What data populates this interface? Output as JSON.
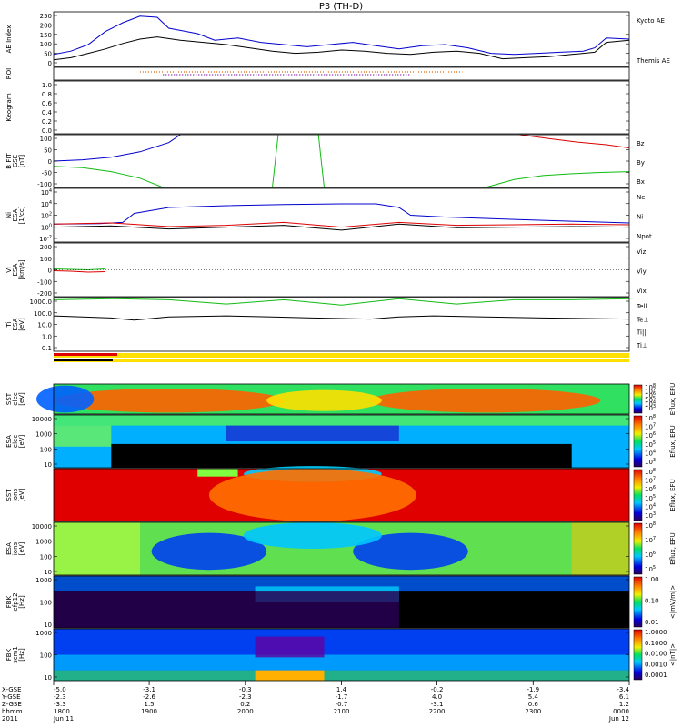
{
  "title": "P3 (TH-D)",
  "colors": {
    "blue": "#0000cc",
    "red": "#dd0000",
    "green": "#11bb11",
    "black": "#000000",
    "orange": "#e06000",
    "purple": "#6a00a0"
  },
  "chart_data": [
    {
      "type": "line",
      "panel": "ae",
      "ylabel": "AE Index",
      "ylim": [
        0,
        250
      ],
      "yticks": [
        "250",
        "200",
        "150",
        "100",
        "50",
        "0"
      ],
      "legend": [
        "Kyoto AE",
        "Themis AE"
      ],
      "series": [
        {
          "name": "Kyoto AE",
          "t": [
            0,
            0.03,
            0.06,
            0.09,
            0.12,
            0.15,
            0.18,
            0.2,
            0.22,
            0.25,
            0.28,
            0.32,
            0.36,
            0.4,
            0.44,
            0.48,
            0.52,
            0.56,
            0.6,
            0.64,
            0.68,
            0.72,
            0.76,
            0.8,
            0.84,
            0.88,
            0.92,
            0.94,
            0.96,
            1.0
          ],
          "values": [
            55,
            70,
            100,
            160,
            200,
            230,
            225,
            175,
            165,
            150,
            120,
            130,
            110,
            100,
            90,
            100,
            110,
            95,
            80,
            95,
            100,
            85,
            60,
            55,
            60,
            65,
            70,
            85,
            130,
            125
          ]
        },
        {
          "name": "Themis AE",
          "t": [
            0,
            0.03,
            0.06,
            0.09,
            0.12,
            0.15,
            0.18,
            0.22,
            0.26,
            0.3,
            0.34,
            0.38,
            0.42,
            0.46,
            0.5,
            0.54,
            0.58,
            0.62,
            0.66,
            0.7,
            0.74,
            0.78,
            0.82,
            0.86,
            0.9,
            0.94,
            0.96,
            1.0
          ],
          "values": [
            30,
            40,
            60,
            80,
            105,
            125,
            135,
            120,
            110,
            100,
            85,
            70,
            60,
            65,
            75,
            70,
            60,
            55,
            65,
            70,
            60,
            35,
            40,
            45,
            55,
            65,
            110,
            120
          ]
        }
      ]
    },
    {
      "type": "line",
      "panel": "roi",
      "ylabel": "ROI",
      "note": "dotted occupancy flags",
      "series": [
        {
          "name": "",
          "t": [
            0.15,
            0.71
          ],
          "values": [
            1,
            1
          ]
        },
        {
          "name": "",
          "t": [
            0.19,
            0.62
          ],
          "values": [
            2,
            2
          ]
        }
      ]
    },
    {
      "type": "line",
      "panel": "keogram",
      "ylabel": "Keogram",
      "ylim": [
        0,
        1
      ],
      "yticks": [
        "1.0",
        "0.8",
        "0.6",
        "0.4",
        "0.2",
        "0.0"
      ]
    },
    {
      "type": "line",
      "panel": "bfit",
      "ylabel": "B FIT\nGSE\n[nT]",
      "ylim": [
        -100,
        100
      ],
      "yticks": [
        "100",
        "50",
        "0",
        "-50",
        "-100"
      ],
      "legend": [
        "Bz",
        "By",
        "Bx"
      ],
      "series": [
        {
          "name": "Bx",
          "t": [
            0,
            0.05,
            0.1,
            0.15,
            0.2,
            0.22
          ],
          "values": [
            0,
            5,
            15,
            35,
            70,
            100
          ]
        },
        {
          "name": "By",
          "t": [
            0,
            0.05,
            0.1,
            0.15,
            0.19
          ],
          "values": [
            -20,
            -25,
            -40,
            -65,
            -100
          ]
        },
        {
          "name": "Bz",
          "t": [
            0.81,
            0.86,
            0.91,
            0.96,
            1.0
          ],
          "values": [
            100,
            85,
            72,
            62,
            50
          ]
        },
        {
          "name": "By",
          "t": [
            0.38,
            0.385,
            0.39
          ],
          "values": [
            -100,
            0,
            100
          ]
        },
        {
          "name": "By",
          "t": [
            0.46,
            0.465,
            0.47
          ],
          "values": [
            100,
            0,
            -100
          ]
        },
        {
          "name": "By",
          "t": [
            0.75,
            0.8,
            0.85,
            0.9,
            0.95,
            1.0
          ],
          "values": [
            -100,
            -70,
            -55,
            -48,
            -43,
            -40
          ]
        }
      ]
    },
    {
      "type": "line",
      "panel": "ni",
      "ylabel": "Ni\nESA\n[1/cc]",
      "scale": "log",
      "ylim_exp": [
        -3,
        6
      ],
      "yticks": [
        "10^4",
        "10^4",
        "10^2",
        "10^0",
        "10^-2"
      ],
      "legend": [
        "Ne",
        "Ni",
        "Npot"
      ],
      "series": [
        {
          "name": "Npot",
          "t": [
            0,
            0.08,
            0.12,
            0.14,
            0.2,
            0.3,
            0.4,
            0.5,
            0.56,
            0.6,
            0.62,
            0.68,
            0.8,
            0.9,
            1.0
          ],
          "values_log": [
            0,
            0.1,
            0.3,
            1.8,
            2.8,
            3.1,
            3.3,
            3.4,
            3.4,
            2.8,
            1.5,
            1.2,
            0.8,
            0.5,
            0.2
          ]
        },
        {
          "name": "Ne",
          "t": [
            0,
            0.1,
            0.2,
            0.3,
            0.4,
            0.5,
            0.6,
            0.7,
            0.8,
            0.9,
            1.0
          ],
          "values_log": [
            0,
            0.2,
            -0.4,
            -0.2,
            0.3,
            -0.5,
            0.3,
            -0.2,
            -0.1,
            0,
            -0.1
          ]
        },
        {
          "name": "Ni",
          "t": [
            0,
            0.1,
            0.2,
            0.3,
            0.4,
            0.5,
            0.6,
            0.7,
            0.8,
            0.9,
            1.0
          ],
          "values_log": [
            -0.5,
            -0.3,
            -0.8,
            -0.5,
            -0.2,
            -1.0,
            0,
            -0.6,
            -0.5,
            -0.4,
            -0.5
          ]
        }
      ]
    },
    {
      "type": "line",
      "panel": "vi",
      "ylabel": "Vi\nESA\n[km/s]",
      "ylim": [
        -300,
        300
      ],
      "yticks": [
        "200",
        "100",
        "0",
        "-100",
        "-200"
      ],
      "legend": [
        "Viz",
        "Viy",
        "Vix"
      ],
      "series": [
        {
          "name": "Viy",
          "t": [
            0,
            0.03,
            0.06,
            0.09
          ],
          "values": [
            10,
            5,
            0,
            10
          ]
        },
        {
          "name": "Viz",
          "t": [
            0,
            0.03,
            0.06,
            0.09
          ],
          "values": [
            -10,
            -15,
            -25,
            -20
          ]
        }
      ]
    },
    {
      "type": "line",
      "panel": "ti",
      "ylabel": "Ti\nESA\n[eV]",
      "scale": "log",
      "ylim_exp": [
        -1,
        4
      ],
      "yticks": [
        "1000.0",
        "100.0",
        "10.0",
        "1.0",
        "0.1"
      ],
      "legend": [
        "Tell",
        "Te⊥",
        "Ti||",
        "Ti⊥"
      ],
      "series": [
        {
          "name": "Tell",
          "t": [
            0,
            0.1,
            0.2,
            0.3,
            0.4,
            0.5,
            0.6,
            0.7,
            0.8,
            0.9,
            1.0
          ],
          "values_log": [
            3.8,
            3.9,
            3.8,
            3.4,
            3.8,
            3.3,
            3.9,
            3.4,
            3.8,
            3.8,
            3.9
          ]
        },
        {
          "name": "Ti||",
          "t": [
            0,
            0.1,
            0.14,
            0.2,
            0.3,
            0.38,
            0.45,
            0.55,
            0.6,
            0.66,
            0.75,
            0.85,
            1.0
          ],
          "values_log": [
            2.3,
            2.1,
            1.9,
            2.2,
            2.3,
            2.2,
            2.1,
            2.0,
            2.2,
            2.3,
            2.2,
            2.1,
            2.0
          ]
        }
      ]
    },
    {
      "type": "heatmap",
      "panel": "sst_e",
      "ylabel": "SST\nelec\n[eV]",
      "cbar_label": "Eflux, EFU",
      "cbar_ticks": [
        "10^8",
        "10^7",
        "10^6",
        "10^5",
        "10^4",
        "10^3"
      ]
    },
    {
      "type": "heatmap",
      "panel": "esa_e",
      "ylabel": "ESA\nelec\n[eV]",
      "yticks": [
        "10000",
        "1000",
        "100",
        "10"
      ],
      "cbar_label": "Eflux, EFU",
      "cbar_ticks": [
        "10^8",
        "10^7",
        "10^6",
        "10^5",
        "10^4",
        "10^3"
      ]
    },
    {
      "type": "heatmap",
      "panel": "sst_i",
      "ylabel": "SST\nions\n[eV]",
      "cbar_label": "Eflux, EFU",
      "cbar_ticks": [
        "10^8",
        "10^7",
        "10^6",
        "10^5",
        "10^4",
        "10^3"
      ]
    },
    {
      "type": "heatmap",
      "panel": "esa_i",
      "ylabel": "ESA\nions\n[eV]",
      "yticks": [
        "10000",
        "1000",
        "100",
        "10"
      ],
      "cbar_label": "Eflux, EFU",
      "cbar_ticks": [
        "10^8",
        "10^7",
        "10^6",
        "10^5"
      ]
    },
    {
      "type": "heatmap",
      "panel": "fbk_e",
      "ylabel": "FBK\nefp12\n[Hz]",
      "yticks": [
        "1000",
        "100",
        "10"
      ],
      "cbar_label": "<|mV/m|>",
      "cbar_ticks": [
        "1.00",
        "0.10",
        "0.01"
      ]
    },
    {
      "type": "heatmap",
      "panel": "fbk_b",
      "ylabel": "FBK\nscm1\n[Hz]",
      "yticks": [
        "1000",
        "100",
        "10"
      ],
      "cbar_label": "<|nT|>",
      "cbar_ticks": [
        "1.0000",
        "0.1000",
        "0.0100",
        "0.0010",
        "0.0001"
      ]
    }
  ],
  "xaxis": {
    "rows": [
      "X-GSE",
      "Y-GSE",
      "Z-GSE",
      "hhmm",
      "2011"
    ],
    "ticks": [
      {
        "t": 0.0,
        "vals": [
          "-5.0",
          "-2.3",
          "-3.3",
          "1800",
          "Jun 11"
        ]
      },
      {
        "t": 0.166,
        "vals": [
          "-3.1",
          "-2.6",
          "1.5",
          "1900",
          ""
        ]
      },
      {
        "t": 0.333,
        "vals": [
          "-0.3",
          "-2.3",
          "0.2",
          "2000",
          ""
        ]
      },
      {
        "t": 0.5,
        "vals": [
          "1.4",
          "-1.7",
          "-0.7",
          "2100",
          ""
        ]
      },
      {
        "t": 0.666,
        "vals": [
          "-0.2",
          "4.0",
          "-3.1",
          "2200",
          ""
        ]
      },
      {
        "t": 0.833,
        "vals": [
          "-1.9",
          "5.4",
          "0.6",
          "2300",
          ""
        ]
      },
      {
        "t": 1.0,
        "vals": [
          "-3.4",
          "6.1",
          "1.2",
          "0000",
          "Jun 12"
        ]
      }
    ]
  }
}
